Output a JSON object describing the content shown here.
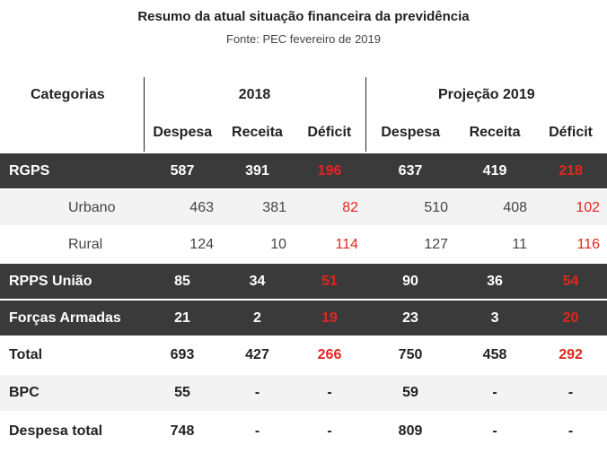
{
  "title": "Resumo da atual situação financeira da previdência",
  "subtitle": "Fonte: PEC  fevereiro de 2019",
  "header": {
    "categories": "Categorias",
    "year1": "2018",
    "year2": "Projeção 2019",
    "cols": [
      "Despesa",
      "Receita",
      "Déficit",
      "Despesa",
      "Receita",
      "Déficit"
    ]
  },
  "rows": [
    {
      "label": "RGPS",
      "values": [
        "587",
        "391",
        "196",
        "637",
        "419",
        "218"
      ]
    },
    {
      "label": "Urbano",
      "values": [
        "463",
        "381",
        "82",
        "510",
        "408",
        "102"
      ]
    },
    {
      "label": "Rural",
      "values": [
        "124",
        "10",
        "114",
        "127",
        "11",
        "116"
      ]
    },
    {
      "label": "RPPS União",
      "values": [
        "85",
        "34",
        "51",
        "90",
        "36",
        "54"
      ]
    },
    {
      "label": "Forças Armadas",
      "values": [
        "21",
        "2",
        "19",
        "23",
        "3",
        "20"
      ]
    },
    {
      "label": "Total",
      "values": [
        "693",
        "427",
        "266",
        "750",
        "458",
        "292"
      ]
    },
    {
      "label": "BPC",
      "values": [
        "55",
        "-",
        "-",
        "59",
        "-",
        "-"
      ]
    },
    {
      "label": "Despesa total",
      "values": [
        "748",
        "-",
        "-",
        "809",
        "-",
        "-"
      ]
    }
  ],
  "colors": {
    "dark_row": "#3a3a3a",
    "deficit": "#e3261f",
    "light_row": "#f3f3f3"
  }
}
